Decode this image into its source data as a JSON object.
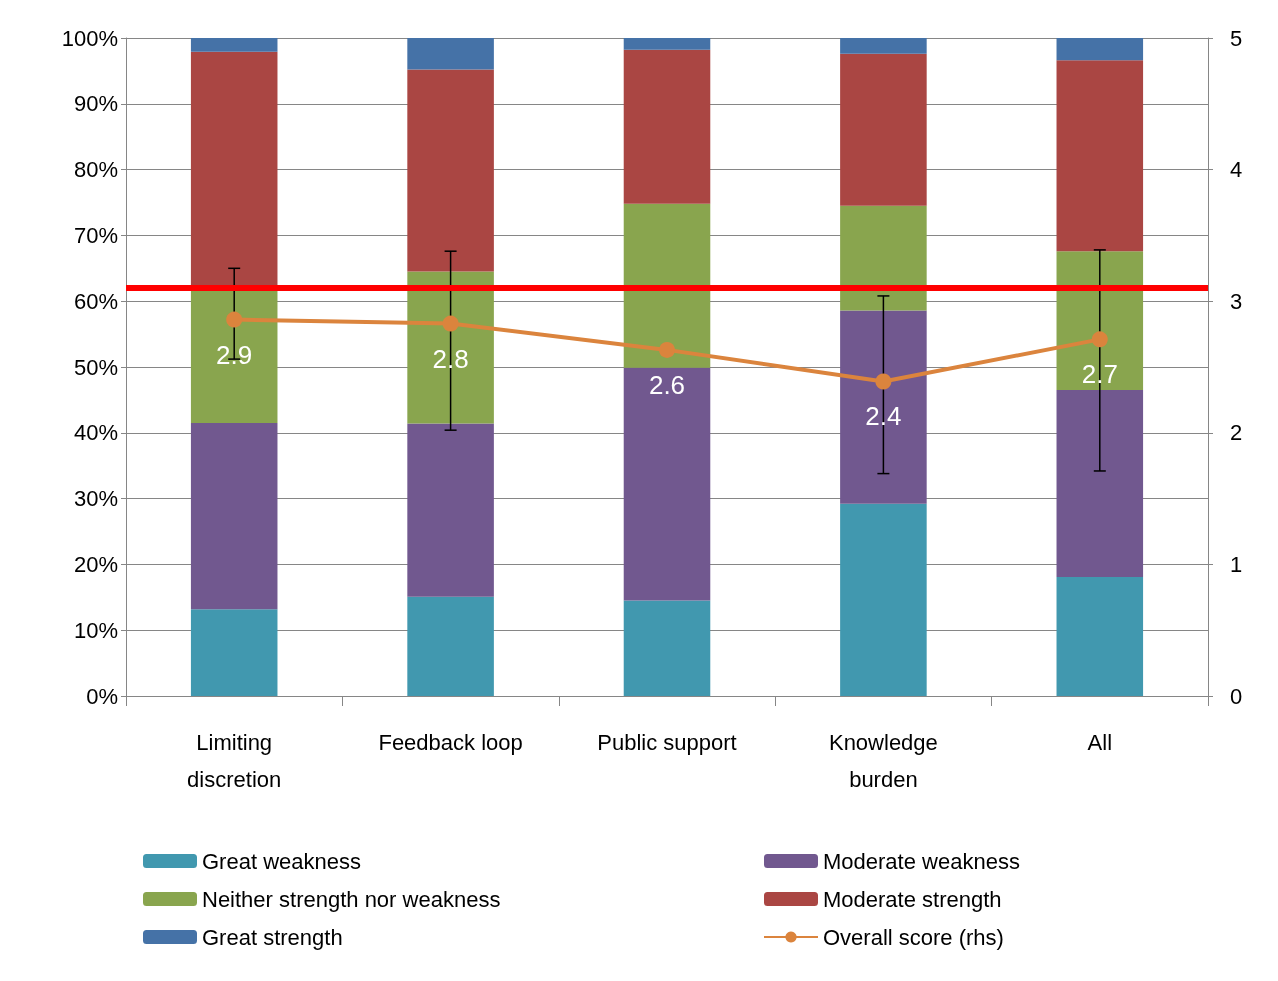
{
  "chart_data": {
    "type": "bar",
    "stacked": true,
    "categories": [
      "Limiting discretion",
      "Feedback loop",
      "Public support",
      "Knowledge burden",
      "All"
    ],
    "series": [
      {
        "name": "Great weakness",
        "color": "#4198af",
        "values": [
          13.2,
          15.1,
          14.5,
          29.2,
          18.1
        ]
      },
      {
        "name": "Moderate weakness",
        "color": "#71588f",
        "values": [
          28.3,
          26.3,
          35.4,
          29.4,
          28.4
        ]
      },
      {
        "name": "Neither strength nor weakness",
        "color": "#89a54e",
        "values": [
          20.5,
          23.1,
          24.9,
          15.9,
          21.1
        ]
      },
      {
        "name": "Moderate strength",
        "color": "#aa4643",
        "values": [
          35.9,
          30.7,
          23.4,
          23.1,
          29.0
        ]
      },
      {
        "name": "Great strength",
        "color": "#4572a7",
        "values": [
          2.1,
          4.8,
          1.8,
          2.4,
          3.4
        ]
      },
      {
        "name": "Overall score (rhs)",
        "type": "line",
        "axis": "y2",
        "color": "#db843d",
        "marker": "circle",
        "values": [
          2.86,
          2.83,
          2.63,
          2.39,
          2.71
        ],
        "value_labels": [
          "2.9",
          "2.8",
          "2.6",
          "2.4",
          "2.7"
        ],
        "errors": [
          [
            2.56,
            3.25
          ],
          [
            2.02,
            3.38
          ],
          null,
          [
            1.69,
            3.04
          ],
          [
            1.71,
            3.39
          ]
        ]
      }
    ],
    "ylim": [
      0,
      100
    ],
    "yticks": [
      {
        "value": 0,
        "label": "0%"
      },
      {
        "value": 10,
        "label": "10%"
      },
      {
        "value": 20,
        "label": "20%"
      },
      {
        "value": 30,
        "label": "30%"
      },
      {
        "value": 40,
        "label": "40%"
      },
      {
        "value": 50,
        "label": "50%"
      },
      {
        "value": 60,
        "label": "60%"
      },
      {
        "value": 70,
        "label": "70%"
      },
      {
        "value": 80,
        "label": "80%"
      },
      {
        "value": 90,
        "label": "90%"
      },
      {
        "value": 100,
        "label": "100%"
      }
    ],
    "y2lim": [
      0,
      5
    ],
    "y2ticks": [
      0,
      1,
      2,
      3,
      4,
      5
    ],
    "ref_lines": [
      {
        "axis": "y2",
        "value": 3.1,
        "color": "#ff0000",
        "line_style": "solid"
      }
    ],
    "grid": "y",
    "legend": "bottom"
  }
}
